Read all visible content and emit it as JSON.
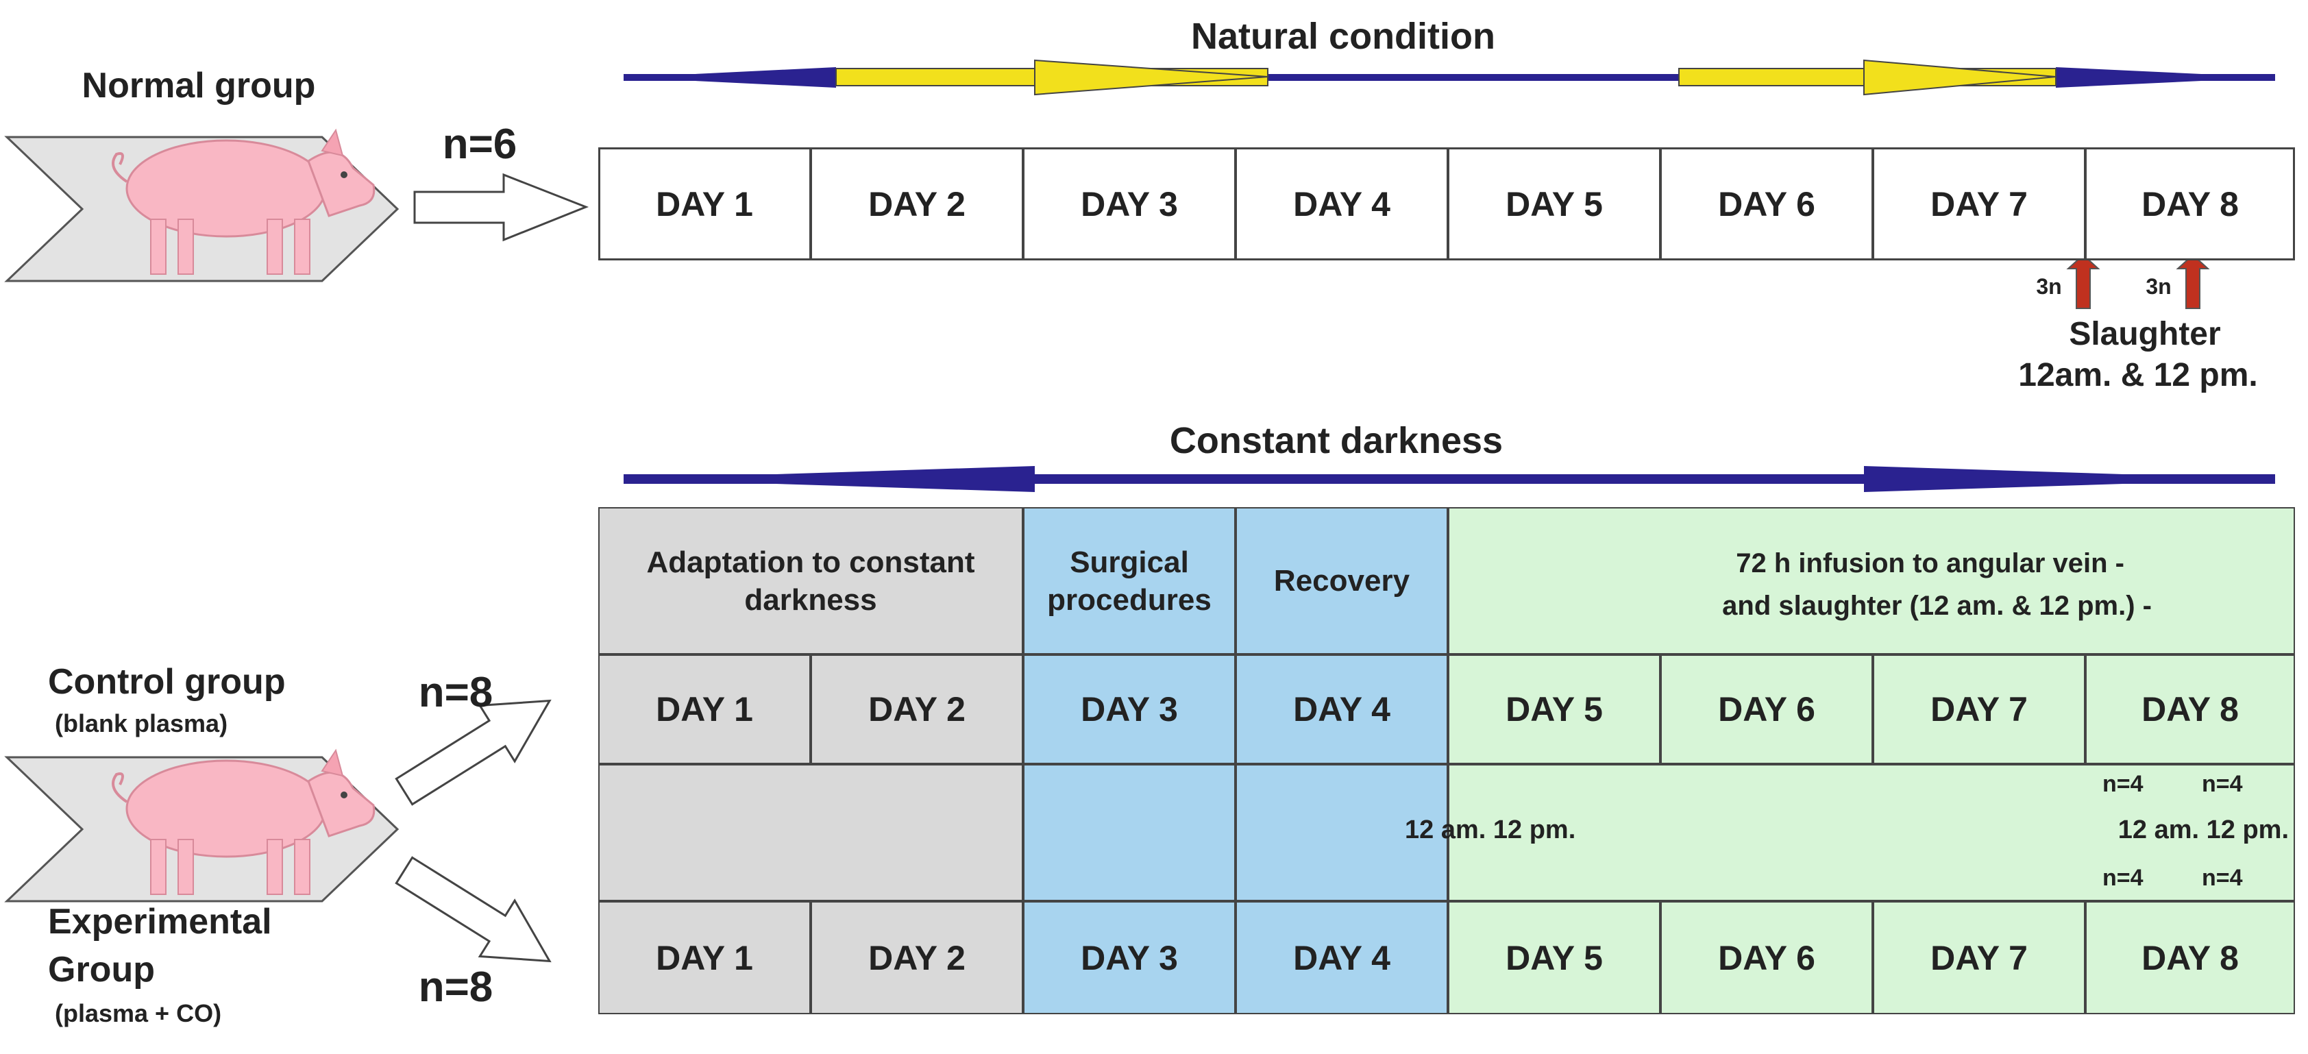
{
  "top": {
    "title": "Natural condition",
    "group_label": "Normal group",
    "n_label": "n=6",
    "days": [
      "DAY 1",
      "DAY 2",
      "DAY 3",
      "DAY 4",
      "DAY 5",
      "DAY 6",
      "DAY 7",
      "DAY 8"
    ],
    "sample_marks": [
      "3n",
      "3n"
    ],
    "slaughter_line1": "Slaughter",
    "slaughter_line2": "12am. & 12 pm."
  },
  "bottom": {
    "title": "Constant darkness",
    "phases": {
      "adaptation": "Adaptation to constant darkness",
      "surgical": "Surgical procedures",
      "recovery": "Recovery",
      "legend_line1": "72 h infusion to angular vein -",
      "legend_line2": "and slaughter (12 am. & 12 pm.) -"
    },
    "control": {
      "label": "Control group",
      "sublabel": "(blank plasma)",
      "n_label": "n=8"
    },
    "experimental": {
      "label_line1": "Experimental",
      "label_line2": "Group",
      "sublabel": "(plasma + CO)",
      "n_label": "n=8"
    },
    "days": [
      "DAY 1",
      "DAY 2",
      "DAY 3",
      "DAY 4",
      "DAY 5",
      "DAY 6",
      "DAY 7",
      "DAY 8"
    ],
    "time_labels_left": "12 am. 12 pm.",
    "time_labels_right": "12 am. 12 pm.",
    "n_marks": [
      "n=4",
      "n=4",
      "n=4",
      "n=4"
    ]
  },
  "colors": {
    "navy": "#2a2290",
    "yellow": "#f2e01c",
    "red": "#c0311f",
    "adaptation_gray": "#d9d9d9",
    "surgery_blue": "#a8d4ef",
    "infusion_green": "#d7f5d7",
    "pig_pink": "#f9b7c4"
  }
}
